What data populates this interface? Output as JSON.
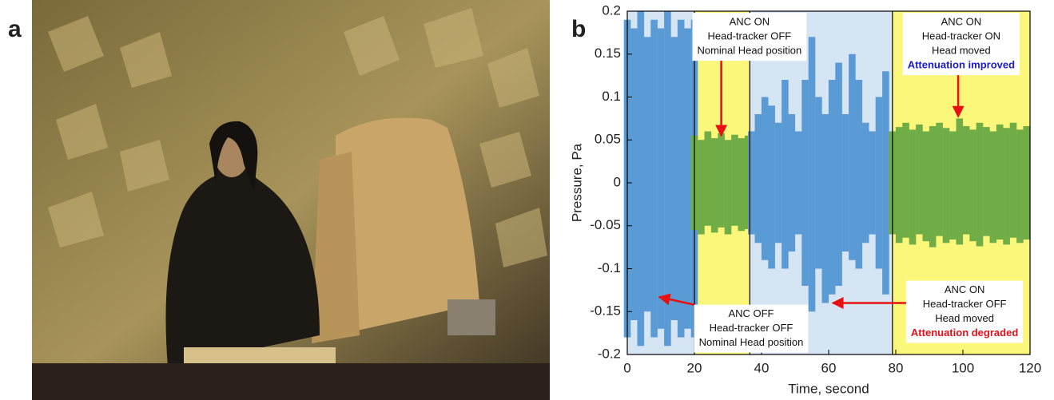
{
  "panel_labels": [
    "a",
    "b"
  ],
  "chart_data": {
    "type": "band",
    "xlabel": "Time, second",
    "ylabel": "Pressure, Pa",
    "xlim": [
      0,
      120
    ],
    "xticks": [
      0,
      20,
      40,
      60,
      80,
      100,
      120
    ],
    "ylim": [
      -0.2,
      0.2
    ],
    "yticks": [
      -0.2,
      -0.15,
      -0.1,
      -0.05,
      0,
      0.05,
      0.1,
      0.15,
      0.2
    ],
    "regions": [
      {
        "x": [
          0,
          20
        ],
        "color": "#d6e5f4"
      },
      {
        "x": [
          20,
          36.5
        ],
        "color": "#fbf77a"
      },
      {
        "x": [
          36.5,
          79
        ],
        "color": "#d6e5f4"
      },
      {
        "x": [
          79,
          120
        ],
        "color": "#fbf77a"
      }
    ],
    "dividers": [
      20,
      36.5,
      79
    ],
    "series": [
      {
        "color": "#5b9bd5",
        "x": [
          0,
          2,
          4,
          6,
          8,
          10,
          12,
          14,
          16,
          18,
          20
        ],
        "high": [
          0.19,
          0.18,
          0.2,
          0.17,
          0.19,
          0.18,
          0.2,
          0.17,
          0.19,
          0.18,
          0.19
        ],
        "low": [
          -0.18,
          -0.16,
          -0.19,
          -0.15,
          -0.18,
          -0.17,
          -0.19,
          -0.16,
          -0.18,
          -0.17,
          -0.18
        ]
      },
      {
        "color": "#70ad47",
        "x": [
          20,
          22,
          24,
          26,
          28,
          30,
          32,
          34,
          36
        ],
        "high": [
          0.055,
          0.05,
          0.06,
          0.052,
          0.058,
          0.05,
          0.056,
          0.052,
          0.055
        ],
        "low": [
          -0.055,
          -0.06,
          -0.05,
          -0.058,
          -0.052,
          -0.06,
          -0.05,
          -0.056,
          -0.054
        ]
      },
      {
        "color": "#5b9bd5",
        "x": [
          37,
          39,
          41,
          43,
          45,
          47,
          49,
          51,
          53,
          55,
          57,
          59,
          61,
          63,
          65,
          67,
          69,
          71,
          73,
          75,
          77,
          79
        ],
        "high": [
          0.06,
          0.08,
          0.1,
          0.09,
          0.07,
          0.12,
          0.08,
          0.06,
          0.12,
          0.17,
          0.1,
          0.08,
          0.12,
          0.14,
          0.08,
          0.15,
          0.12,
          0.07,
          0.06,
          0.1,
          0.13,
          0.06
        ],
        "low": [
          -0.06,
          -0.07,
          -0.09,
          -0.1,
          -0.07,
          -0.1,
          -0.08,
          -0.06,
          -0.12,
          -0.15,
          -0.1,
          -0.14,
          -0.13,
          -0.12,
          -0.08,
          -0.09,
          -0.1,
          -0.07,
          -0.06,
          -0.1,
          -0.13,
          -0.06
        ]
      },
      {
        "color": "#70ad47",
        "x": [
          79,
          81,
          83,
          85,
          87,
          89,
          91,
          93,
          95,
          97,
          99,
          101,
          103,
          105,
          107,
          109,
          111,
          113,
          115,
          117,
          119
        ],
        "high": [
          0.06,
          0.065,
          0.07,
          0.062,
          0.068,
          0.06,
          0.066,
          0.07,
          0.064,
          0.06,
          0.075,
          0.066,
          0.062,
          0.07,
          0.065,
          0.06,
          0.068,
          0.064,
          0.07,
          0.062,
          0.066
        ],
        "low": [
          -0.06,
          -0.07,
          -0.064,
          -0.072,
          -0.06,
          -0.068,
          -0.075,
          -0.062,
          -0.07,
          -0.066,
          -0.072,
          -0.06,
          -0.068,
          -0.074,
          -0.062,
          -0.07,
          -0.066,
          -0.072,
          -0.064,
          -0.07,
          -0.066
        ]
      }
    ],
    "annotations": [
      {
        "lines": [
          "ANC ON",
          "Head-tracker OFF",
          "Nominal Head position"
        ],
        "xytext": [
          36.4,
          0.198
        ],
        "xy": [
          28,
          0.055
        ]
      },
      {
        "lines": [
          "ANC ON",
          "Head-tracker ON",
          "Head moved",
          "Attenuation improved"
        ],
        "last_line_color": "#1a1acc",
        "xytext": [
          99.5,
          0.198
        ],
        "xy": [
          98.6,
          0.077
        ]
      },
      {
        "lines": [
          "ANC OFF",
          "Head-tracker OFF",
          "Nominal Head position"
        ],
        "xytext": [
          36.9,
          -0.142
        ],
        "xy": [
          9.5,
          -0.133
        ]
      },
      {
        "lines": [
          "ANC ON",
          "Head-tracker OFF",
          "Head moved",
          "Attenuation degraded"
        ],
        "last_line_color": "#e0101a",
        "xytext": [
          100.5,
          -0.114
        ],
        "xy": [
          61.2,
          -0.14
        ]
      }
    ],
    "arrow_color": "#e81010"
  }
}
